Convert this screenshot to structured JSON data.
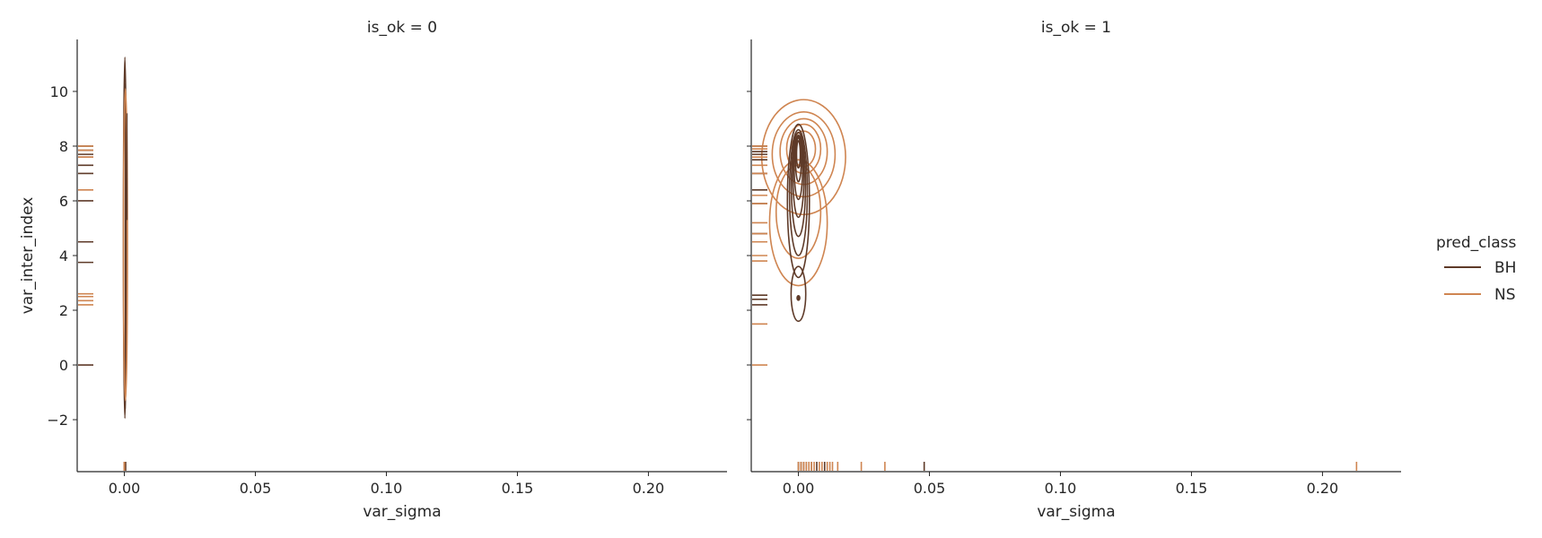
{
  "chart_data": [
    {
      "type": "kde_contour_with_rug",
      "title": "is_ok = 0",
      "xlabel": "var_sigma",
      "ylabel": "var_inter_index",
      "xlim": [
        -0.018,
        0.23
      ],
      "ylim": [
        -3.9,
        11.9
      ],
      "xticks": [
        "0.00",
        "0.05",
        "0.10",
        "0.15",
        "0.20"
      ],
      "yticks": [
        "−2",
        "0",
        "2",
        "4",
        "6",
        "8",
        "10"
      ],
      "series": [
        {
          "name": "BH",
          "x_rug": [
            0.0,
            0.0,
            0.0,
            0.0005
          ],
          "y_rug": [
            0.0,
            3.75,
            4.5,
            6.0,
            7.0,
            7.3,
            7.6,
            7.7,
            7.85,
            8.0
          ],
          "contour_y_range": [
            -1.95,
            11.25
          ]
        },
        {
          "name": "NS",
          "x_rug": [
            0.0,
            0.0,
            0.0
          ],
          "y_rug": [
            2.2,
            2.35,
            2.5,
            2.6,
            6.4,
            7.6,
            7.85,
            8.0
          ],
          "contour_y_range": [
            -1.3,
            10.1
          ]
        }
      ]
    },
    {
      "type": "kde_contour_with_rug",
      "title": "is_ok = 1",
      "xlabel": "var_sigma",
      "ylabel": "",
      "xlim": [
        -0.018,
        0.23
      ],
      "ylim": [
        -3.9,
        11.9
      ],
      "xticks": [
        "0.00",
        "0.05",
        "0.10",
        "0.15",
        "0.20"
      ],
      "series": [
        {
          "name": "BH",
          "x_rug": [
            0.0,
            0.001,
            0.002,
            0.003,
            0.005,
            0.007,
            0.01,
            0.048
          ],
          "y_rug": [
            2.2,
            2.4,
            2.55,
            4.5,
            4.8,
            5.9,
            6.4,
            7.0,
            7.5,
            7.7,
            7.8,
            8.0
          ],
          "contour_center": [
            0.0,
            6.5
          ]
        },
        {
          "name": "NS",
          "x_rug": [
            0.0,
            0.001,
            0.002,
            0.003,
            0.004,
            0.005,
            0.006,
            0.008,
            0.009,
            0.011,
            0.012,
            0.013,
            0.015,
            0.024,
            0.033,
            0.213
          ],
          "y_rug": [
            0.0,
            1.5,
            3.8,
            4.0,
            4.5,
            4.8,
            5.2,
            5.9,
            6.2,
            7.0,
            7.3,
            7.6,
            7.9,
            8.0
          ],
          "contour_center": [
            0.002,
            7.0
          ]
        }
      ]
    }
  ],
  "legend": {
    "title": "pred_class",
    "placement": "right",
    "entries": [
      {
        "label": "BH",
        "color": "#5e3a28"
      },
      {
        "label": "NS",
        "color": "#cf8551"
      }
    ]
  },
  "colors": {
    "BH": "#5e3a28",
    "NS": "#cf8551",
    "axis": "#262626"
  }
}
